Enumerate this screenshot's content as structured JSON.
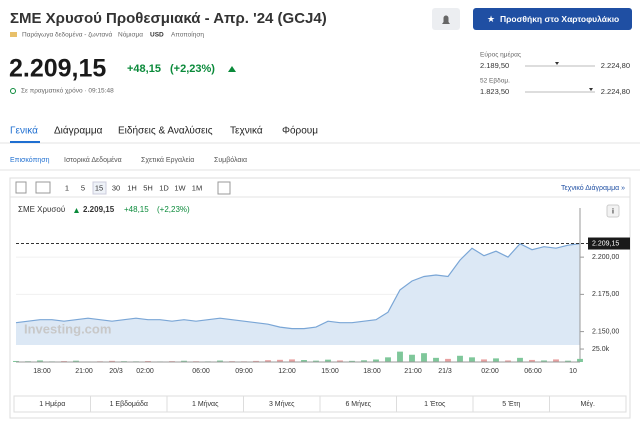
{
  "header": {
    "title": "ΣΜΕ Χρυσού Προθεσμιακά - Απρ. '24 (GCJ4)",
    "add_button": "Προσθήκη στο Χαρτοφυλάκιο",
    "data_type": "Παράγωγα δεδομένα - ζωντανά",
    "currency_label": "Νόμισμα",
    "currency": "USD",
    "disclaimer": "Αποποίηση"
  },
  "quote": {
    "price": "2.209,15",
    "change": "+48,15",
    "change_pct": "(+2,23%)",
    "realtime": "Σε πραγματικό χρόνο · 09:15:48"
  },
  "ranges": [
    {
      "label": "Εύρος ημέρας",
      "low": "2.189,50",
      "high": "2.224,80"
    },
    {
      "label": "52 Εβδομ.",
      "low": "1.823,50",
      "high": "2.224,80"
    }
  ],
  "tabs": [
    "Γενικά",
    "Διάγραμμα",
    "Ειδήσεις & Αναλύσεις",
    "Τεχνικά",
    "Φόρουμ"
  ],
  "subtabs": [
    "Επισκόπηση",
    "Ιστορικά Δεδομένα",
    "Σχετικά Εργαλεία",
    "Συμβόλαια"
  ],
  "toolbar": {
    "intervals": [
      "1",
      "5",
      "15",
      "30",
      "1H",
      "5H",
      "1D",
      "1W",
      "1M"
    ],
    "technical_link": "Τεχνικό Διάγραμμα »"
  },
  "chart": {
    "type": "area",
    "legend_name": "ΣΜΕ Χρυσού",
    "legend_price": "2.209,15",
    "legend_change": "+48,15",
    "legend_pct": "(+2,23%)",
    "watermark": "Investing.com",
    "last_label": "2.209,15",
    "last_value": 2209.15,
    "values": [
      2156,
      2157,
      2158,
      2158,
      2157,
      2158,
      2159,
      2158,
      2157,
      2158,
      2159,
      2158,
      2158,
      2157,
      2158,
      2157,
      2158,
      2159,
      2158,
      2157,
      2156,
      2155,
      2153,
      2152,
      2152,
      2153,
      2157,
      2156,
      2156,
      2157,
      2158,
      2163,
      2178,
      2184,
      2187,
      2188,
      2187,
      2198,
      2206,
      2201,
      2204,
      2200,
      2209,
      2205,
      2207,
      2206,
      2208,
      2209
    ],
    "ylim": [
      2141,
      2233
    ],
    "yticks": [
      {
        "value": 2150,
        "label": "2.150,00"
      },
      {
        "value": 2175,
        "label": "2.175,00"
      },
      {
        "value": 2200,
        "label": "2.200,00"
      }
    ],
    "volume": [
      2000,
      1500,
      3000,
      1200,
      1800,
      2500,
      1000,
      1400,
      2200,
      1600,
      1300,
      1900,
      1100,
      1700,
      2400,
      1500,
      1200,
      2800,
      1600,
      1300,
      2100,
      3500,
      4200,
      5000,
      3800,
      2600,
      4500,
      3000,
      2200,
      3300,
      4800,
      9000,
      20000,
      14000,
      17000,
      8000,
      6000,
      12000,
      9000,
      5000,
      7000,
      3000,
      8000,
      4000,
      3000,
      5000,
      2500,
      6000
    ],
    "vlim": [
      0,
      27000
    ],
    "vticks": [
      {
        "value": 25000,
        "label": "25.0k"
      }
    ],
    "xlabels": [
      "18:00",
      "21:00",
      "20/3",
      "02:00",
      "06:00",
      "09:00",
      "12:00",
      "15:00",
      "18:00",
      "21:00",
      "21/3",
      "02:00",
      "06:00",
      "10"
    ],
    "line_color": "#7aa6d6",
    "fill_color": "#dce8f5",
    "volume_up": "#7fc79a",
    "volume_down": "#e8a0a0"
  },
  "periods": [
    "1 Ημέρα",
    "1 Εβδομάδα",
    "1 Μήνας",
    "3 Μήνες",
    "6 Μήνες",
    "1 Έτος",
    "5 Έτη",
    "Μέγ."
  ]
}
